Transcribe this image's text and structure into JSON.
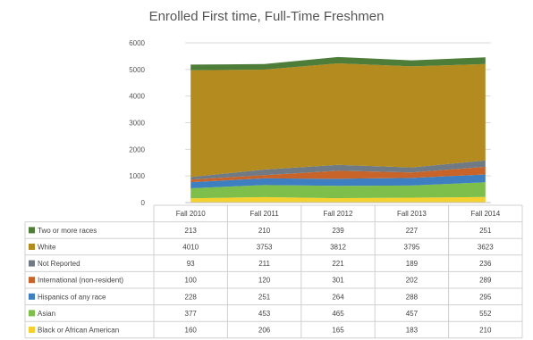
{
  "chart_data": {
    "type": "area",
    "stacked": true,
    "title": "Enrolled First time, Full-Time Freshmen",
    "categories": [
      "Fall 2010",
      "Fall 2011",
      "Fall 2012",
      "Fall 2013",
      "Fall 2014"
    ],
    "ylim": [
      0,
      6000
    ],
    "yticks": [
      0,
      1000,
      2000,
      3000,
      4000,
      5000,
      6000
    ],
    "grid": true,
    "legend": "data table below chart",
    "series": [
      {
        "name": "Black or African American",
        "color": "#f5d130",
        "values": [
          160,
          206,
          165,
          183,
          210
        ]
      },
      {
        "name": "Asian",
        "color": "#7dbf4a",
        "values": [
          377,
          453,
          465,
          457,
          552
        ]
      },
      {
        "name": "Hispanics of any race",
        "color": "#3d7fc1",
        "values": [
          228,
          251,
          264,
          288,
          295
        ]
      },
      {
        "name": "International (non-resident)",
        "color": "#c8642a",
        "values": [
          100,
          120,
          301,
          202,
          289
        ]
      },
      {
        "name": "Not Reported",
        "color": "#707a84",
        "values": [
          93,
          211,
          221,
          189,
          236
        ]
      },
      {
        "name": "White",
        "color": "#b38b1e",
        "values": [
          4010,
          3753,
          3812,
          3795,
          3623
        ]
      },
      {
        "name": "Two or more races",
        "color": "#4e7d3a",
        "values": [
          213,
          210,
          239,
          227,
          251
        ]
      }
    ]
  }
}
